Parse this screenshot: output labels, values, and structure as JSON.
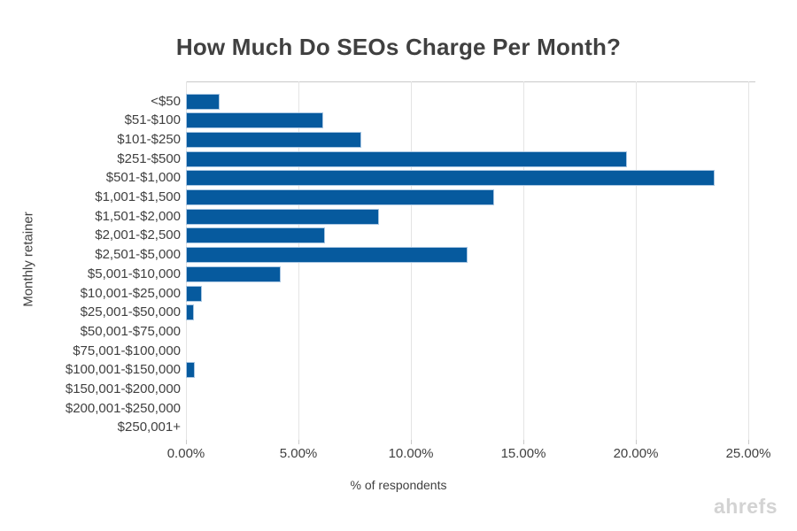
{
  "chart": {
    "watermark": "ahrefs"
  },
  "chart_data": {
    "type": "bar",
    "orientation": "horizontal",
    "title": "How Much Do SEOs Charge Per Month?",
    "categories": [
      "<$50",
      "$51-$100",
      "$101-$250",
      "$251-$500",
      "$501-$1,000",
      "$1,001-$1,500",
      "$1,501-$2,000",
      "$2,001-$2,500",
      "$2,501-$5,000",
      "$5,001-$10,000",
      "$10,001-$25,000",
      "$25,001-$50,000",
      "$50,001-$75,000",
      "$75,001-$100,000",
      "$100,001-$150,000",
      "$150,001-$200,000",
      "$200,001-$250,000",
      "$250,001+"
    ],
    "values": [
      1.5,
      6.1,
      7.8,
      19.6,
      23.5,
      13.7,
      8.6,
      6.2,
      12.5,
      4.2,
      0.7,
      0.35,
      0,
      0,
      0.4,
      0,
      0,
      0
    ],
    "xlabel": "% of respondents",
    "ylabel": "Monthly retainer",
    "xlim": [
      0,
      25
    ],
    "x_tick_values": [
      0,
      5,
      10,
      15,
      20,
      25
    ],
    "x_tick_labels": [
      "0.00%",
      "5.00%",
      "10.00%",
      "15.00%",
      "20.00%",
      "25.00%"
    ],
    "grid": "vertical-gridlines-on",
    "legend": "none",
    "colors": {
      "bar_fill": "#065a9e",
      "bar_border": "#a8c6e2",
      "gridline": "#e4e4e4",
      "plot_border": "#c9c9c9",
      "text": "#404040",
      "watermark": "#d3d3d3",
      "background": "#ffffff"
    }
  }
}
